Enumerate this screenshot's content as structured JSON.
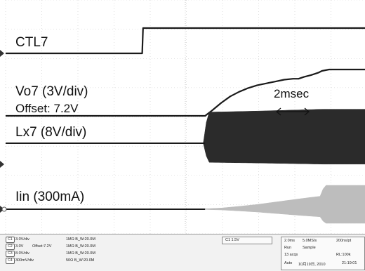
{
  "chart_data": {
    "type": "line",
    "time_unit": "ms",
    "x_range": [
      0,
      20
    ],
    "series": [
      {
        "name": "CTL7",
        "x": [
          0,
          7.6,
          7.65,
          20
        ],
        "y": [
          0,
          0,
          1,
          1
        ]
      },
      {
        "name": "Vo7 (3V/div)",
        "x": [
          0,
          11.1,
          11.5,
          12,
          12.5,
          13,
          13.5,
          14,
          14.5,
          15,
          15.5,
          16,
          16.3,
          16.6,
          17,
          17.4,
          17.6,
          18,
          20
        ],
        "y": [
          0,
          0,
          0.12,
          0.28,
          0.42,
          0.52,
          0.6,
          0.66,
          0.7,
          0.74,
          0.78,
          0.8,
          0.8,
          0.84,
          0.88,
          0.93,
          0.97,
          1,
          1
        ]
      },
      {
        "name": "Lx7 (8V/div)",
        "x": [
          0,
          11.1,
          11.2,
          14,
          17.6,
          20
        ],
        "y": [
          0,
          0,
          0.85,
          0.88,
          0.93,
          0.93
        ]
      },
      {
        "name": "Iin (300mA)",
        "x": [
          0,
          11.1,
          12,
          13,
          14,
          15,
          16,
          16.6,
          17.6,
          17.7,
          20
        ],
        "y": [
          0,
          0.02,
          0.05,
          0.12,
          0.2,
          0.3,
          0.4,
          0.46,
          0.55,
          1,
          1
        ]
      }
    ]
  },
  "labels": {
    "ctl7": "CTL7",
    "vo7": "Vo7 (3V/div)",
    "offset": "Offset: 7.2V",
    "lx7": "Lx7 (8V/div)",
    "iin": "Iin (300mA)",
    "scale_annotation": "2msec"
  },
  "status": {
    "ch1": {
      "id": "C1",
      "scale": "3.0V/div",
      "info": "1MΩ B_W:20.0M"
    },
    "ch2": {
      "id": "C2",
      "scale": "3.0V",
      "offset": "Offset:7.2V",
      "info": "1MΩ B_W:20.0M"
    },
    "ch3": {
      "id": "C3",
      "scale": "8.0V/div",
      "info": "1MΩ B_W:20.0M"
    },
    "ch4": {
      "id": "C4",
      "scale": "300mV/div",
      "info": "50Ω B_W:20.0M"
    },
    "trigger": "C1 1.5V",
    "timebase": "2.0ms",
    "sample_rate": "5.0MS/s",
    "time_per_pt": "200ns/pt",
    "run": "Run",
    "mode": "Sample",
    "acqs": "13 acqs",
    "record_length": "RL:100k",
    "auto": "Auto",
    "date": "10月19日, 2010",
    "time": "21:19:01"
  },
  "colors": {
    "trace": "#1a1a1a",
    "lx_fill": "#2b2b2b",
    "iin_fill": "#bdbdbd",
    "grid": "#c8c8c8"
  }
}
